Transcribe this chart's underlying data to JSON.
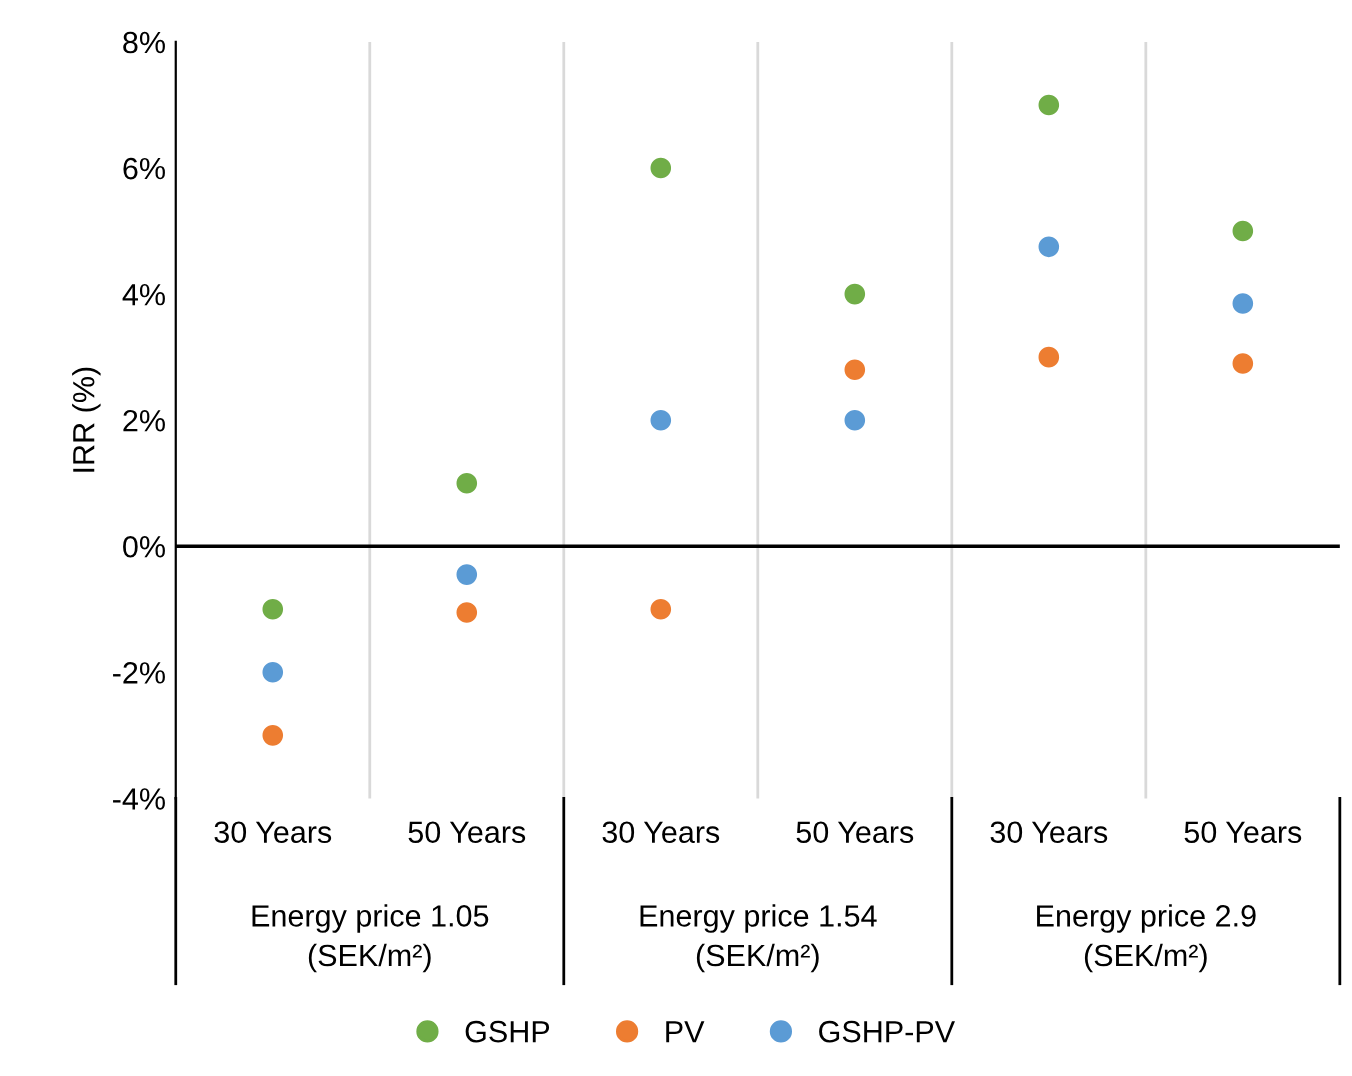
{
  "chart_data": {
    "type": "scatter",
    "ylabel": "IRR (%)",
    "categories": [
      "30 Years",
      "50 Years",
      "30 Years",
      "50 Years",
      "30 Years",
      "50 Years"
    ],
    "series": [
      {
        "name": "GSHP",
        "color": "#70ad47",
        "values": [
          -1,
          1,
          6,
          4,
          7,
          5
        ]
      },
      {
        "name": "PV",
        "color": "#ed7d31",
        "values": [
          -3,
          -1.05,
          -1,
          2.8,
          3.0,
          2.9
        ]
      },
      {
        "name": "GSHP-PV",
        "color": "#5b9bd5",
        "values": [
          -2,
          -0.45,
          2,
          2,
          4.75,
          3.85
        ]
      }
    ],
    "annotations": [
      "Energy price 1.05\n(SEK/m²)",
      "Energy price 1.54\n(SEK/m²)",
      "Energy price 2.9\n(SEK/m²)"
    ],
    "ylim": [
      -4,
      8
    ],
    "yticks": [
      {
        "value": -4,
        "label": "-4%"
      },
      {
        "value": -2,
        "label": "-2%"
      },
      {
        "value": 0,
        "label": "0%"
      },
      {
        "value": 2,
        "label": "2%"
      },
      {
        "value": 4,
        "label": "4%"
      },
      {
        "value": 6,
        "label": "6%"
      },
      {
        "value": 8,
        "label": "8%"
      }
    ],
    "ref_lines": [
      {
        "axis": "y",
        "value": 0,
        "label": null,
        "color": "#000000"
      }
    ],
    "grid": "x",
    "legend": "bottom",
    "marker": "circle"
  }
}
